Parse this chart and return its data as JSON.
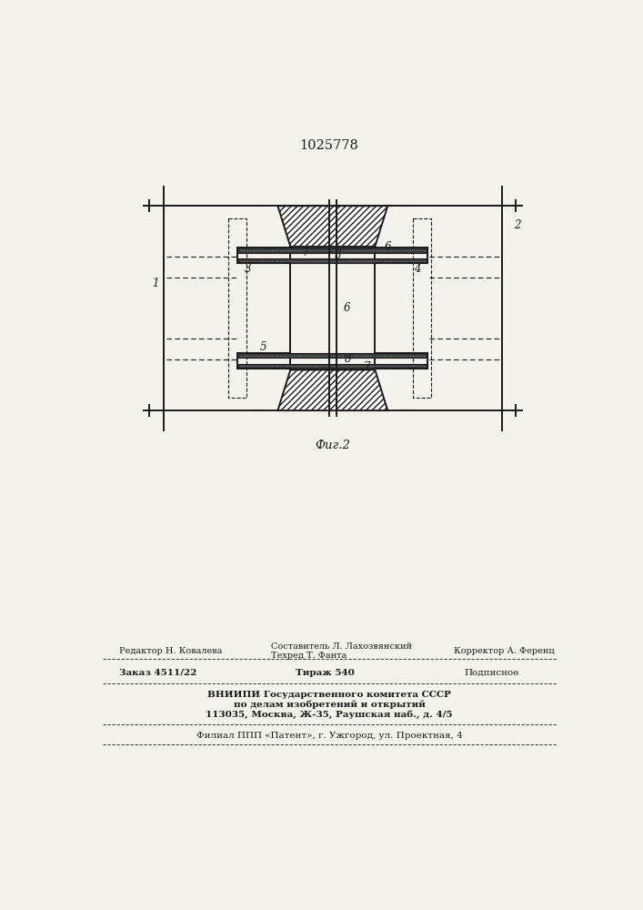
{
  "patent_number": "1025778",
  "fig_label": "Фиг.2",
  "bg_color": "#f5f2ee",
  "lc": "#1a1a1a",
  "footer_editor": "Редактор Н. Ковалева",
  "footer_compiler": "Составитель Л. Лахозвянский",
  "footer_corrector": "Корректор А. Ференц",
  "footer_techred": "Техред Т. Фанта",
  "footer_order": "Заказ 4511/22",
  "footer_tirazh": "Тираж 540",
  "footer_podp": "Подписное",
  "footer_vniipи": "ВНИИПИ Государственного комитета СССР",
  "footer_dela": "по делам изобретений и открытий",
  "footer_addr": "113035, Москва, Ж-35, Раушская наб., д. 4/5",
  "footer_filial": "Филиал ППП «Патент», г. Ужгород, ул. Проектная, 4"
}
